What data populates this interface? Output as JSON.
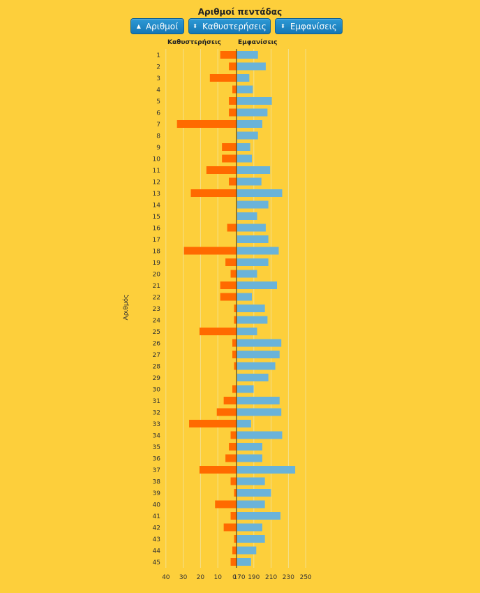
{
  "title": "Αριθμοί πεντάδας",
  "buttons": [
    {
      "label": "Αριθμοί",
      "icon": "sort-ascending-icon"
    },
    {
      "label": "Καθυστερήσεις",
      "icon": "sort-both-icon"
    },
    {
      "label": "Εμφανίσεις",
      "icon": "sort-both-icon"
    }
  ],
  "icons": {
    "sort-ascending-icon": "▲",
    "sort-both-icon": "⬍"
  },
  "colors": {
    "background": "#fdcf3b",
    "delays_bar": "#ff6a00",
    "appearances_bar": "#6ab3d9",
    "button": "#1a83c4",
    "grid": "#f3e08e"
  },
  "chart_data": {
    "type": "bar",
    "orientation": "horizontal",
    "title": "Αριθμοί πεντάδας",
    "ylabel": "Αριθμός",
    "categories": [
      "1",
      "2",
      "3",
      "4",
      "5",
      "6",
      "7",
      "8",
      "9",
      "10",
      "11",
      "12",
      "13",
      "14",
      "15",
      "16",
      "17",
      "18",
      "19",
      "20",
      "21",
      "22",
      "23",
      "24",
      "25",
      "26",
      "27",
      "28",
      "29",
      "30",
      "31",
      "32",
      "33",
      "34",
      "35",
      "36",
      "37",
      "38",
      "39",
      "40",
      "41",
      "42",
      "43",
      "44",
      "45"
    ],
    "series": [
      {
        "name": "Καθυστερήσεις",
        "side": "left",
        "xlim": [
          0,
          40
        ],
        "ticks": [
          "40",
          "30",
          "20",
          "10",
          "0"
        ],
        "values": [
          9,
          4,
          15,
          2,
          4,
          4,
          34,
          0,
          8,
          8,
          17,
          4,
          26,
          0,
          0,
          5,
          0,
          30,
          6,
          3,
          9,
          9,
          1,
          1,
          21,
          2,
          2,
          1,
          0,
          2,
          7,
          11,
          27,
          3,
          4,
          6,
          21,
          3,
          1,
          12,
          3,
          7,
          1,
          2,
          3
        ]
      },
      {
        "name": "Εμφανίσεις",
        "side": "right",
        "xlim": [
          170,
          260
        ],
        "ticks": [
          "170",
          "190",
          "210",
          "230",
          "250"
        ],
        "values": [
          194,
          203,
          184,
          188,
          210,
          205,
          199,
          194,
          185,
          187,
          208,
          198,
          222,
          206,
          193,
          203,
          206,
          218,
          206,
          193,
          216,
          187,
          202,
          205,
          193,
          221,
          219,
          214,
          206,
          189,
          219,
          221,
          186,
          222,
          199,
          199,
          237,
          202,
          209,
          202,
          220,
          199,
          202,
          192,
          186
        ]
      }
    ],
    "grid": true,
    "legend": "top"
  }
}
